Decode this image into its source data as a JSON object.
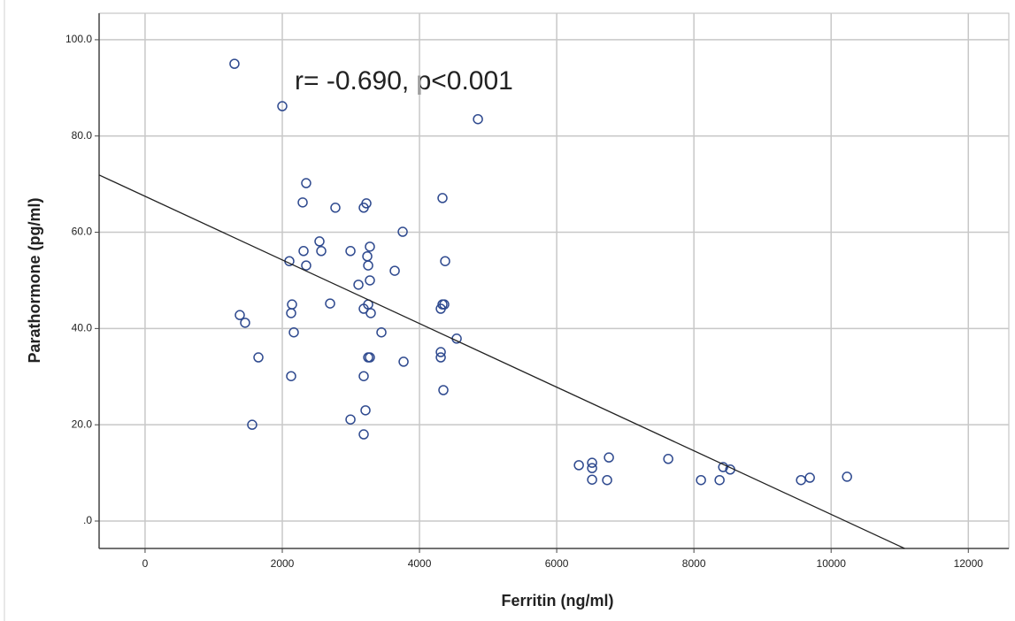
{
  "chart_data": {
    "type": "scatter",
    "x_label": "Ferritin (ng/ml)",
    "y_label": "Parathormone (pg/ml)",
    "annotation": "r= -0.690, p<0.001",
    "x": [
      1303,
      2000,
      4852,
      2348,
      2297,
      2774,
      3187,
      3226,
      4335,
      3755,
      2542,
      2310,
      2568,
      2994,
      3277,
      3239,
      2103,
      2348,
      3252,
      3639,
      4374,
      3277,
      3110,
      2697,
      2142,
      3252,
      2129,
      3187,
      3290,
      4310,
      4335,
      4361,
      1381,
      1458,
      2168,
      3445,
      4542,
      1652,
      3252,
      3277,
      4310,
      4310,
      3768,
      2129,
      3187,
      4348,
      3213,
      2994,
      1561,
      3187,
      6323,
      6516,
      6516,
      6516,
      6761,
      6735,
      7626,
      8103,
      8374,
      8426,
      8529,
      9561,
      9690,
      10232
    ],
    "y": [
      95.0,
      86.2,
      83.5,
      70.2,
      66.2,
      65.1,
      65.1,
      66.0,
      67.1,
      60.1,
      58.1,
      56.1,
      56.1,
      56.1,
      57.0,
      55.0,
      54.0,
      53.1,
      53.1,
      52.0,
      54.0,
      50.0,
      49.1,
      45.2,
      45.0,
      45.0,
      43.2,
      44.1,
      43.2,
      44.1,
      45.0,
      45.0,
      42.8,
      41.2,
      39.2,
      39.2,
      37.9,
      34.0,
      34.0,
      34.0,
      35.1,
      34.0,
      33.1,
      30.1,
      30.1,
      27.2,
      23.0,
      21.1,
      20.0,
      18.0,
      11.6,
      12.1,
      11.0,
      8.6,
      13.2,
      8.5,
      12.9,
      8.5,
      8.5,
      11.2,
      10.7,
      8.5,
      9.0,
      9.2
    ],
    "color": "#2f4a8f",
    "fit_line": {
      "x": [
        -670,
        11071
      ],
      "y": [
        71.9,
        -5.7
      ],
      "color": "#222222"
    },
    "xlim": [
      -670,
      12590
    ],
    "ylim": [
      -5.7,
      105.5
    ],
    "xticks": [
      0,
      2000,
      4000,
      6000,
      8000,
      10000,
      12000
    ],
    "yticks": [
      {
        "value": 0,
        "label": ".0"
      },
      {
        "value": 20,
        "label": "20.0"
      },
      {
        "value": 40,
        "label": "40.0"
      },
      {
        "value": 60,
        "label": "60.0"
      },
      {
        "value": 80,
        "label": "80.0"
      },
      {
        "value": 100,
        "label": "100.0"
      }
    ],
    "grid": true
  }
}
